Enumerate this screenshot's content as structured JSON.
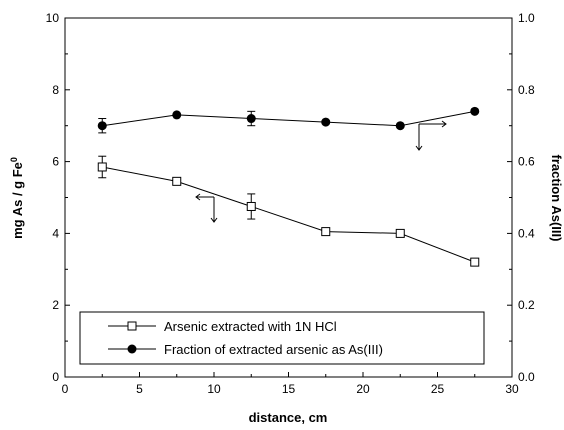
{
  "chart_data": {
    "type": "line",
    "title": "",
    "xlabel": "distance, cm",
    "ylabel_left": "mg As / g Fe",
    "ylabel_left_superscript": "0",
    "ylabel_right": "fraction As(III)",
    "xlim": [
      0,
      30
    ],
    "ylim_left": [
      0,
      10
    ],
    "ylim_right": [
      0.0,
      1.0
    ],
    "x_ticks": [
      "0",
      "5",
      "10",
      "15",
      "20",
      "25",
      "30"
    ],
    "y_left_ticks": [
      "0",
      "2",
      "4",
      "6",
      "8",
      "10"
    ],
    "y_right_ticks": [
      "0.0",
      "0.2",
      "0.4",
      "0.6",
      "0.8",
      "1.0"
    ],
    "grid": false,
    "legend_position": "bottom-left",
    "series": [
      {
        "name": "Arsenic extracted with 1N HCl",
        "axis": "left",
        "marker": "open-square",
        "color": "#000000",
        "x": [
          2.5,
          7.5,
          12.5,
          17.5,
          22.5,
          27.5
        ],
        "y": [
          5.85,
          5.45,
          4.75,
          4.05,
          4.0,
          3.2
        ],
        "yerr": [
          0.3,
          0,
          0.35,
          0,
          0,
          0
        ]
      },
      {
        "name": "Fraction of extracted arsenic as As(III)",
        "axis": "right",
        "marker": "filled-circle",
        "color": "#000000",
        "x": [
          2.5,
          7.5,
          12.5,
          17.5,
          22.5,
          27.5
        ],
        "y": [
          0.7,
          0.73,
          0.72,
          0.71,
          0.7,
          0.74
        ],
        "yerr": [
          0.02,
          0,
          0.02,
          0,
          0,
          0
        ]
      }
    ]
  }
}
